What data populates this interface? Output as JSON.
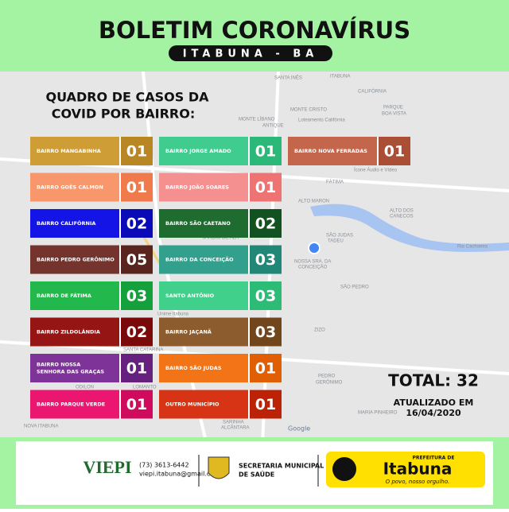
{
  "header": {
    "title": "BOLETIM CORONAVÍRUS",
    "subtitle": "ITABUNA - BA"
  },
  "heading": [
    "QUADRO DE CASOS DA",
    "COVID POR BAIRRO:"
  ],
  "columns": [
    [
      {
        "name": "BAIRRO MANGABINHA",
        "count": "01",
        "color": "#cf9d36",
        "number_color": "#b98624"
      },
      {
        "name": "BAIRRO GOÊS CALMON",
        "count": "01",
        "color": "#f7976b",
        "number_color": "#f07a4c"
      },
      {
        "name": "BAIRRO CALIFÓRNIA",
        "count": "02",
        "color": "#1414e6",
        "number_color": "#0a0ab8"
      },
      {
        "name": "BAIRRO PEDRO GERÔNIMO",
        "count": "05",
        "color": "#74332c",
        "number_color": "#5a241e"
      },
      {
        "name": "BAIRRO DE FÁTIMA",
        "count": "03",
        "color": "#22b84c",
        "number_color": "#14a03a"
      },
      {
        "name": "BAIRRO ZILDOLÂNDIA",
        "count": "02",
        "color": "#951414",
        "number_color": "#7a0a0a"
      },
      {
        "name": "BAIRRO NOSSA SENHORA DAS GRAÇAS",
        "count": "01",
        "color": "#7e3398",
        "number_color": "#66207e"
      },
      {
        "name": "BAIRRO PARQUE VERDE",
        "count": "01",
        "color": "#ea1670",
        "number_color": "#d00a5c"
      }
    ],
    [
      {
        "name": "BAIRRO JORGE AMADO",
        "count": "01",
        "color": "#40cc8e",
        "number_color": "#2cb878"
      },
      {
        "name": "BAIRRO JOÃO SOARES",
        "count": "01",
        "color": "#f59090",
        "number_color": "#ee7474"
      },
      {
        "name": "BAIRRO SÃO CAETANO",
        "count": "02",
        "color": "#1f6c30",
        "number_color": "#125220"
      },
      {
        "name": "BAIRRO DA CONCEIÇÃO",
        "count": "03",
        "color": "#33a08e",
        "number_color": "#218878"
      },
      {
        "name": "SANTO ANTÔNIO",
        "count": "03",
        "color": "#40d08c",
        "number_color": "#2cbc76"
      },
      {
        "name": "BAIRRO JAÇANÃ",
        "count": "03",
        "color": "#8c5c2e",
        "number_color": "#72461c"
      },
      {
        "name": "BAIRRO SÃO JUDAS",
        "count": "01",
        "color": "#f37416",
        "number_color": "#e05e04"
      },
      {
        "name": "OUTRO MUNICÍPIO",
        "count": "01",
        "color": "#d63414",
        "number_color": "#bc2206"
      }
    ],
    [
      {
        "name": "BAIRRO NOVA FERRADAS",
        "count": "01",
        "color": "#c4664c",
        "number_color": "#aa4e36"
      }
    ]
  ],
  "total": "TOTAL: 32",
  "updated": [
    "ATUALIZADO EM",
    "16/04/2020"
  ],
  "map_labels": [
    "SANTA INÊS",
    "ITABUNA",
    "CALIFÓRNIA",
    "MONTE CRISTO",
    "PARQUE",
    "BOA VISTA",
    "MONTE LÍBANO",
    "ANTIQUE",
    "Loteamento Califórnia",
    "Ícone Áudio e Vídeo",
    "FÁTIMA",
    "ALTO MARON",
    "Rio Cachoeira",
    "ALTO DOS",
    "CANECOS",
    "SÃO JUDAS",
    "TADEU",
    "NOSSA SRA. DA",
    "CONCEIÇÃO",
    "SÃO PEDRO",
    "JARDIM DE ALA",
    "Unime Itabuna",
    "ZIZO",
    "SANTA CATARINA",
    "PEDRO",
    "GERÔNIMO",
    "ODILON",
    "LOMANTO",
    "NOVA ITABUNA",
    "SARINHA",
    "ALCÂNTARA",
    "MARIA PINHEIRO",
    "Google"
  ],
  "footer": {
    "viepi": "VIEPI",
    "phone": "(73) 3613-6442",
    "email": "viepi.itabuna@gmail.com",
    "secretaria": [
      "SECRETARIA MUNICIPAL",
      "DE SAÚDE"
    ],
    "prefeitura": "PREFEITURA DE",
    "city": "Itabuna",
    "slogan": "O povo, nosso orgulho."
  }
}
